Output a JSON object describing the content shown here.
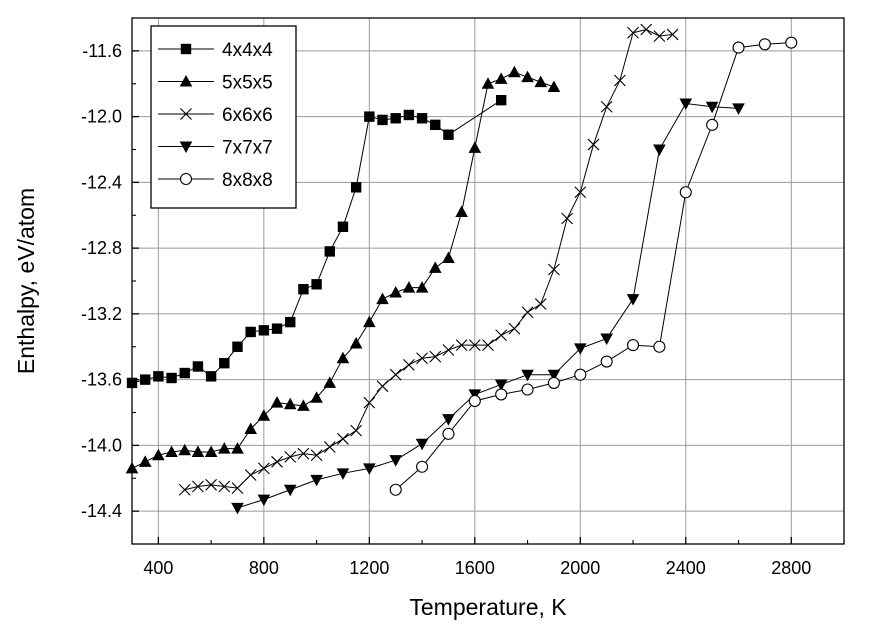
{
  "chart_data": {
    "type": "line",
    "xlabel": "Temperature, K",
    "ylabel": "Enthalpy, eV/atom",
    "xlim": [
      300,
      3000
    ],
    "ylim": [
      -14.6,
      -11.4
    ],
    "xticks": [
      400,
      800,
      1200,
      1600,
      2000,
      2400,
      2800
    ],
    "yticks": [
      -14.4,
      -14.0,
      -13.6,
      -13.2,
      -12.8,
      -12.4,
      -12.0,
      -11.6
    ],
    "grid": true,
    "legend_position": "top-left",
    "series": [
      {
        "name": "4x4x4",
        "marker": "filled-square",
        "x": [
          300,
          350,
          400,
          450,
          500,
          550,
          600,
          650,
          700,
          750,
          800,
          850,
          900,
          950,
          1000,
          1050,
          1100,
          1150,
          1200,
          1250,
          1300,
          1350,
          1400,
          1450,
          1500,
          1700
        ],
        "y": [
          -13.62,
          -13.6,
          -13.58,
          -13.59,
          -13.56,
          -13.52,
          -13.58,
          -13.5,
          -13.4,
          -13.31,
          -13.3,
          -13.29,
          -13.25,
          -13.05,
          -13.02,
          -12.82,
          -12.67,
          -12.43,
          -12.0,
          -12.02,
          -12.01,
          -11.99,
          -12.01,
          -12.05,
          -12.11,
          -11.9
        ]
      },
      {
        "name": "5x5x5",
        "marker": "filled-triangle-up",
        "x": [
          300,
          350,
          400,
          450,
          500,
          550,
          600,
          650,
          700,
          750,
          800,
          850,
          900,
          950,
          1000,
          1050,
          1100,
          1150,
          1200,
          1250,
          1300,
          1350,
          1400,
          1450,
          1500,
          1550,
          1600,
          1650,
          1700,
          1750,
          1800,
          1850,
          1900
        ],
        "y": [
          -14.14,
          -14.1,
          -14.06,
          -14.04,
          -14.03,
          -14.04,
          -14.04,
          -14.02,
          -14.02,
          -13.9,
          -13.82,
          -13.74,
          -13.75,
          -13.76,
          -13.71,
          -13.62,
          -13.47,
          -13.38,
          -13.25,
          -13.11,
          -13.07,
          -13.04,
          -13.04,
          -12.92,
          -12.86,
          -12.58,
          -12.19,
          -11.8,
          -11.77,
          -11.73,
          -11.76,
          -11.79,
          -11.82
        ]
      },
      {
        "name": "6x6x6",
        "marker": "cross",
        "x": [
          500,
          550,
          600,
          650,
          700,
          750,
          800,
          850,
          900,
          950,
          1000,
          1050,
          1100,
          1150,
          1200,
          1250,
          1300,
          1350,
          1400,
          1450,
          1500,
          1550,
          1600,
          1650,
          1700,
          1750,
          1800,
          1850,
          1900,
          1950,
          2000,
          2050,
          2100,
          2150,
          2200,
          2250,
          2300,
          2350
        ],
        "y": [
          -14.27,
          -14.25,
          -14.24,
          -14.25,
          -14.26,
          -14.18,
          -14.14,
          -14.1,
          -14.07,
          -14.05,
          -14.06,
          -14.01,
          -13.96,
          -13.91,
          -13.74,
          -13.64,
          -13.57,
          -13.51,
          -13.47,
          -13.46,
          -13.42,
          -13.39,
          -13.39,
          -13.39,
          -13.33,
          -13.29,
          -13.19,
          -13.14,
          -12.93,
          -12.62,
          -12.46,
          -12.17,
          -11.94,
          -11.78,
          -11.49,
          -11.47,
          -11.51,
          -11.5
        ]
      },
      {
        "name": "7x7x7",
        "marker": "filled-triangle-down",
        "x": [
          700,
          800,
          900,
          1000,
          1100,
          1200,
          1300,
          1400,
          1500,
          1600,
          1700,
          1800,
          1900,
          2000,
          2100,
          2200,
          2300,
          2400,
          2500,
          2600
        ],
        "y": [
          -14.38,
          -14.33,
          -14.27,
          -14.21,
          -14.17,
          -14.14,
          -14.09,
          -13.99,
          -13.84,
          -13.69,
          -13.63,
          -13.57,
          -13.57,
          -13.41,
          -13.35,
          -13.11,
          -12.2,
          -11.92,
          -11.94,
          -11.95
        ]
      },
      {
        "name": "8x8x8",
        "marker": "open-circle",
        "x": [
          1300,
          1400,
          1500,
          1600,
          1700,
          1800,
          1900,
          2000,
          2100,
          2200,
          2300,
          2400,
          2500,
          2600,
          2700,
          2800
        ],
        "y": [
          -14.27,
          -14.13,
          -13.93,
          -13.73,
          -13.69,
          -13.66,
          -13.62,
          -13.57,
          -13.49,
          -13.39,
          -13.4,
          -12.46,
          -12.05,
          -11.58,
          -11.56,
          -11.55
        ]
      }
    ]
  }
}
